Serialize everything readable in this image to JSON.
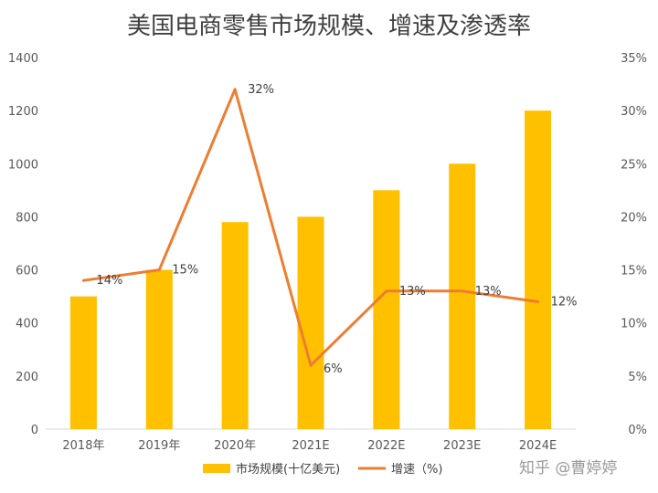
{
  "chart_data": {
    "type": "bar+line",
    "title": "美国电商零售市场规模、增速及渗透率",
    "categories": [
      "2018年",
      "2019年",
      "2020年",
      "2021E",
      "2022E",
      "2023E",
      "2024E"
    ],
    "series": [
      {
        "name": "市场规模(十亿美元)",
        "type": "bar",
        "axis": "left",
        "values": [
          500,
          600,
          780,
          800,
          900,
          1000,
          1200
        ]
      },
      {
        "name": "增速（%)",
        "type": "line",
        "axis": "right",
        "values": [
          14,
          15,
          32,
          6,
          13,
          13,
          12
        ],
        "labels": [
          "14%",
          "15%",
          "32%",
          "6%",
          "13%",
          "13%",
          "12%"
        ]
      }
    ],
    "ylim_left": [
      0,
      1400
    ],
    "yticks_left": [
      "0",
      "200",
      "400",
      "600",
      "800",
      "1000",
      "1200",
      "1400"
    ],
    "ylim_right": [
      0,
      35
    ],
    "yticks_right": [
      "0%",
      "5%",
      "10%",
      "15%",
      "20%",
      "25%",
      "30%",
      "35%"
    ],
    "colors": {
      "bar": "#FFC000",
      "line": "#ED7D31",
      "axis": "#D9D9D9"
    },
    "legend_position": "bottom"
  },
  "watermark": "知乎 @曹婷婷"
}
